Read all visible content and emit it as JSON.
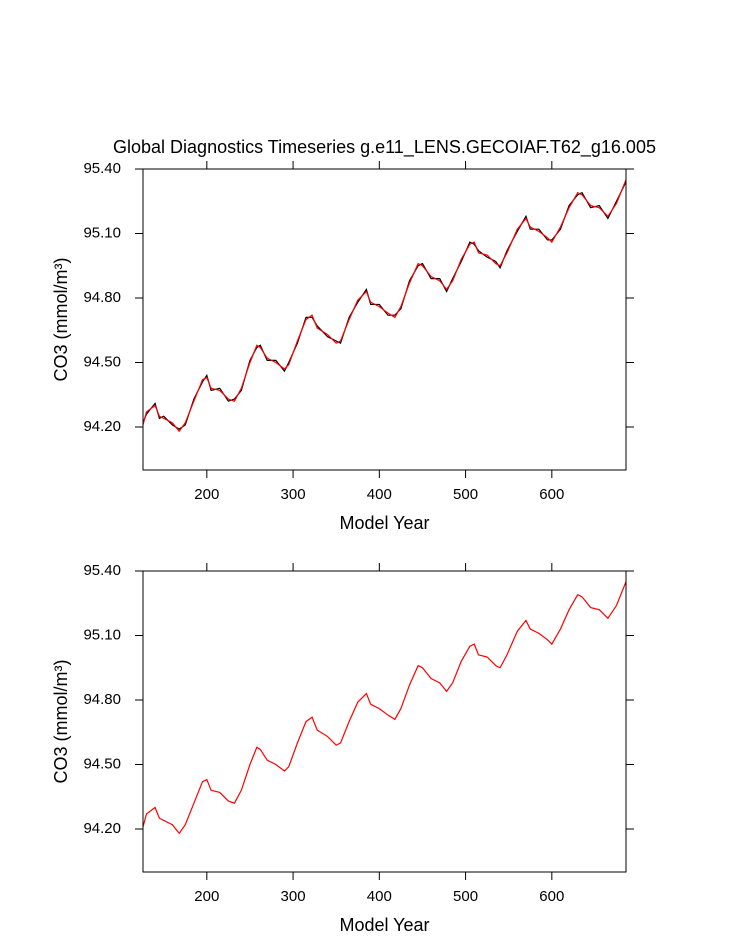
{
  "chart_data": [
    {
      "type": "line",
      "title": "Global Diagnostics Timeseries g.e11_LENS.GECOIAF.T62_g16.005",
      "xlabel": "Model Year",
      "ylabel": "CO3 (mmol/m³)",
      "xlim": [
        126,
        686
      ],
      "ylim": [
        94.0,
        95.4
      ],
      "xticks": [
        200,
        300,
        400,
        500,
        600
      ],
      "yticks": [
        {
          "value": 94.2,
          "label": "94.20"
        },
        {
          "value": 94.5,
          "label": "94.50"
        },
        {
          "value": 94.8,
          "label": "94.80"
        },
        {
          "value": 95.1,
          "label": "95.10"
        },
        {
          "value": 95.4,
          "label": "95.40"
        }
      ],
      "x": [
        126,
        130,
        140,
        145,
        150,
        160,
        168,
        175,
        185,
        195,
        200,
        205,
        215,
        225,
        232,
        240,
        250,
        258,
        262,
        270,
        280,
        290,
        295,
        305,
        315,
        322,
        328,
        340,
        350,
        355,
        365,
        375,
        385,
        390,
        400,
        410,
        418,
        425,
        435,
        445,
        450,
        460,
        470,
        478,
        485,
        495,
        505,
        510,
        515,
        525,
        535,
        540,
        548,
        560,
        570,
        575,
        585,
        595,
        600,
        610,
        620,
        630,
        635,
        645,
        655,
        665,
        675,
        686
      ],
      "series": [
        {
          "color": "#000000",
          "values": [
            94.22,
            94.26,
            94.31,
            94.24,
            94.25,
            94.21,
            94.19,
            94.21,
            94.33,
            94.41,
            94.44,
            94.37,
            94.38,
            94.32,
            94.33,
            94.37,
            94.51,
            94.57,
            94.58,
            94.51,
            94.51,
            94.46,
            94.5,
            94.59,
            94.71,
            94.71,
            94.67,
            94.62,
            94.6,
            94.59,
            94.71,
            94.78,
            94.84,
            94.77,
            94.77,
            94.72,
            94.72,
            94.75,
            94.88,
            94.95,
            94.96,
            94.89,
            94.89,
            94.83,
            94.89,
            94.97,
            95.06,
            95.05,
            95.02,
            94.99,
            94.97,
            94.94,
            95.02,
            95.11,
            95.18,
            95.12,
            95.12,
            95.07,
            95.07,
            95.12,
            95.23,
            95.28,
            95.29,
            95.22,
            95.23,
            95.17,
            95.25,
            95.34
          ]
        },
        {
          "color": "#ff0000",
          "values": [
            94.21,
            94.27,
            94.3,
            94.25,
            94.24,
            94.22,
            94.18,
            94.22,
            94.32,
            94.42,
            94.43,
            94.38,
            94.37,
            94.33,
            94.32,
            94.38,
            94.5,
            94.58,
            94.57,
            94.52,
            94.5,
            94.47,
            94.49,
            94.6,
            94.7,
            94.72,
            94.66,
            94.63,
            94.59,
            94.6,
            94.7,
            94.79,
            94.83,
            94.78,
            94.76,
            94.73,
            94.71,
            94.76,
            94.87,
            94.96,
            94.95,
            94.9,
            94.88,
            94.84,
            94.88,
            94.98,
            95.05,
            95.06,
            95.01,
            95.0,
            94.96,
            94.95,
            95.01,
            95.12,
            95.17,
            95.13,
            95.11,
            95.08,
            95.06,
            95.13,
            95.22,
            95.29,
            95.28,
            95.23,
            95.22,
            95.18,
            95.24,
            95.35
          ]
        }
      ]
    },
    {
      "type": "line",
      "xlabel": "Model Year",
      "ylabel": "CO3 (mmol/m³)",
      "xlim": [
        126,
        686
      ],
      "ylim": [
        94.0,
        95.4
      ],
      "xticks": [
        200,
        300,
        400,
        500,
        600
      ],
      "yticks": [
        {
          "value": 94.2,
          "label": "94.20"
        },
        {
          "value": 94.5,
          "label": "94.50"
        },
        {
          "value": 94.8,
          "label": "94.80"
        },
        {
          "value": 95.1,
          "label": "95.10"
        },
        {
          "value": 95.4,
          "label": "95.40"
        }
      ],
      "x": [
        126,
        130,
        140,
        145,
        150,
        160,
        168,
        175,
        185,
        195,
        200,
        205,
        215,
        225,
        232,
        240,
        250,
        258,
        262,
        270,
        280,
        290,
        295,
        305,
        315,
        322,
        328,
        340,
        350,
        355,
        365,
        375,
        385,
        390,
        400,
        410,
        418,
        425,
        435,
        445,
        450,
        460,
        470,
        478,
        485,
        495,
        505,
        510,
        515,
        525,
        535,
        540,
        548,
        560,
        570,
        575,
        585,
        595,
        600,
        610,
        620,
        630,
        635,
        645,
        655,
        665,
        675,
        686
      ],
      "series": [
        {
          "color": "#ff0000",
          "values": [
            94.21,
            94.27,
            94.3,
            94.25,
            94.24,
            94.22,
            94.18,
            94.22,
            94.32,
            94.42,
            94.43,
            94.38,
            94.37,
            94.33,
            94.32,
            94.38,
            94.5,
            94.58,
            94.57,
            94.52,
            94.5,
            94.47,
            94.49,
            94.6,
            94.7,
            94.72,
            94.66,
            94.63,
            94.59,
            94.6,
            94.7,
            94.79,
            94.83,
            94.78,
            94.76,
            94.73,
            94.71,
            94.76,
            94.87,
            94.96,
            94.95,
            94.9,
            94.88,
            94.84,
            94.88,
            94.98,
            95.05,
            95.06,
            95.01,
            95.0,
            94.96,
            94.95,
            95.01,
            95.12,
            95.17,
            95.13,
            95.11,
            95.08,
            95.06,
            95.13,
            95.22,
            95.29,
            95.28,
            95.23,
            95.22,
            95.18,
            95.24,
            95.35
          ]
        }
      ]
    }
  ]
}
